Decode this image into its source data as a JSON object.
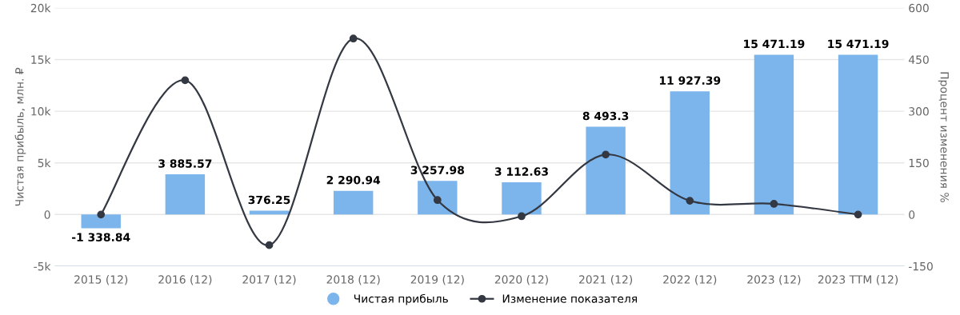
{
  "chart_data": {
    "type": "bar",
    "categories": [
      "2015 (12)",
      "2016 (12)",
      "2017 (12)",
      "2018 (12)",
      "2019 (12)",
      "2020 (12)",
      "2021 (12)",
      "2022 (12)",
      "2023 (12)",
      "2023 TTM (12)"
    ],
    "ylabel": "Чистая прибыль, млн. ₽",
    "y2label": "Процент изменения %",
    "series": [
      {
        "name": "Чистая прибыль",
        "color": "#7cb5ec",
        "values": [
          -1338.84,
          3885.57,
          376.25,
          2290.94,
          3257.98,
          3112.63,
          8493.3,
          11927.39,
          15471.19,
          15471.19
        ],
        "value_labels": [
          "-1 338.84",
          "3 885.57",
          "376.25",
          "2 290.94",
          "3 257.98",
          "3 112.63",
          "8 493.3",
          "11 927.39",
          "15 471.19",
          "15 471.19"
        ]
      },
      {
        "name": "Изменение показателя",
        "type": "line",
        "axis": "y2",
        "color": "#333842",
        "marker": "circle",
        "values": [
          0,
          390,
          -89,
          511,
          42,
          -5,
          174,
          40,
          31,
          0
        ]
      }
    ],
    "ylim": [
      -5000,
      20000
    ],
    "yticks": [
      {
        "value": -5000,
        "label": "-5k"
      },
      {
        "value": 0,
        "label": "0"
      },
      {
        "value": 5000,
        "label": "5k"
      },
      {
        "value": 10000,
        "label": "10k"
      },
      {
        "value": 15000,
        "label": "15k"
      },
      {
        "value": 20000,
        "label": "20k"
      }
    ],
    "y2lim": [
      -150,
      600
    ],
    "y2ticks": [
      -150,
      0,
      150,
      300,
      450,
      600
    ],
    "grid": "y",
    "legend": "bottom"
  }
}
